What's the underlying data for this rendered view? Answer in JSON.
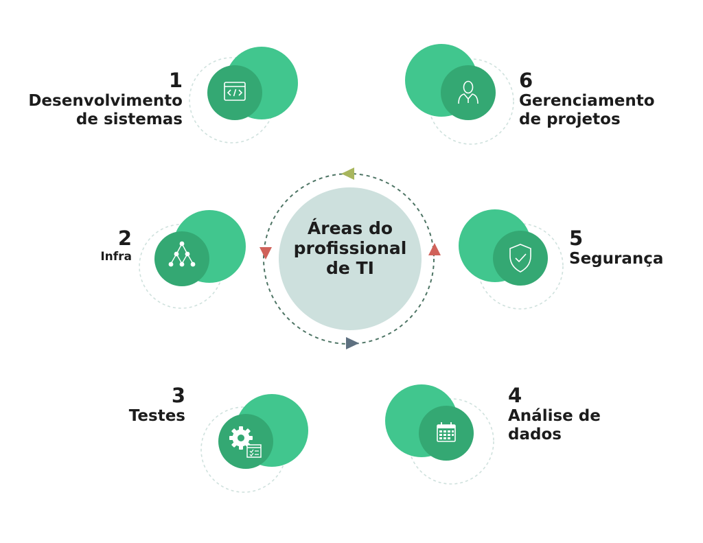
{
  "center": {
    "title_lines": [
      "Áreas do",
      "profissional",
      "de TI"
    ]
  },
  "colors": {
    "light_green": "#41c68e",
    "dark_green": "#34a873",
    "center_fill": "#cde0dd",
    "dashed_ring": "#cfe1dd",
    "cycle_line": "#4d7464",
    "arrow_olive": "#a8b65d",
    "arrow_red": "#d0625a",
    "arrow_slate": "#5e7080"
  },
  "nodes": [
    {
      "number": "1",
      "lines": [
        "Desenvolvimento",
        "de sistemas"
      ],
      "icon": "code-window-icon"
    },
    {
      "number": "2",
      "lines": [
        "Infra"
      ],
      "icon": "network-tree-icon"
    },
    {
      "number": "3",
      "lines": [
        "Testes"
      ],
      "icon": "gear-checklist-icon"
    },
    {
      "number": "4",
      "lines": [
        "Análise de",
        "dados"
      ],
      "icon": "calendar-icon"
    },
    {
      "number": "5",
      "lines": [
        "Segurança"
      ],
      "icon": "shield-check-icon"
    },
    {
      "number": "6",
      "lines": [
        "Gerenciamento",
        "de projetos"
      ],
      "icon": "user-tie-icon"
    }
  ]
}
